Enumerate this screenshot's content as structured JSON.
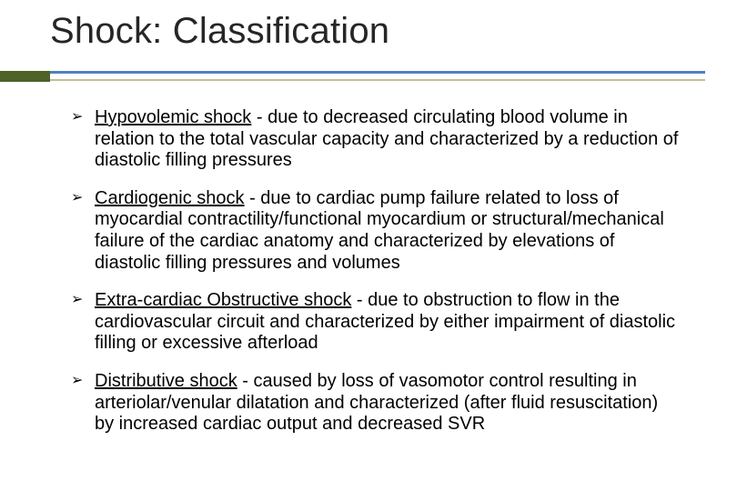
{
  "title": "Shock: Classification",
  "bullets": [
    {
      "term": "Hypovolemic shock",
      "rest": " - due to decreased circulating blood volume in  relation to the total vascular capacity and characterized by a reduction  of diastolic filling pressures"
    },
    {
      "term": "Cardiogenic shock",
      "rest": " - due to cardiac pump failure related to loss of  myocardial contractility/functional myocardium or structural/mechanical failure of the cardiac anatomy and characterized  by elevations of diastolic filling pressures and volumes"
    },
    {
      "term": "Extra-cardiac Obstructive shock",
      "rest": " - due to obstruction to flow in the  cardiovascular circuit and characterized by either impairment of  diastolic filling or excessive afterload"
    },
    {
      "term": "Distributive shock",
      "rest": " - caused by loss of vasomotor control resulting in  arteriolar/venular dilatation and characterized (after fluid resuscitation)  by increased cardiac output and decreased SVR"
    }
  ],
  "colors": {
    "accent_block": "#4f6228",
    "rule_blue": "#4f81bd",
    "rule_tan": "#c4bd97",
    "text": "#000000",
    "title": "#262626",
    "background": "#ffffff"
  },
  "bullet_glyph": "➢"
}
